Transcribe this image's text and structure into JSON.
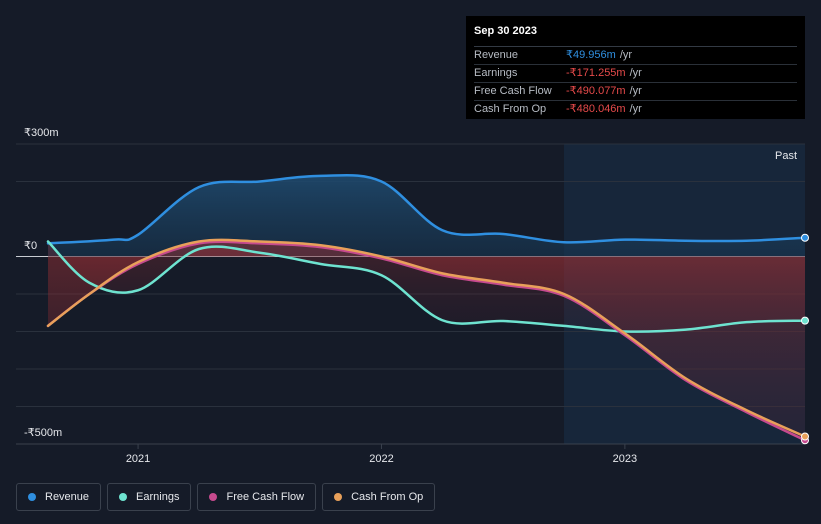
{
  "tooltip": {
    "date": "Sep 30 2023",
    "rows": [
      {
        "label": "Revenue",
        "value": "₹49.956m",
        "unit": "/yr",
        "color": "#2f8fe0"
      },
      {
        "label": "Earnings",
        "value": "-₹171.255m",
        "unit": "/yr",
        "color": "#e64a4a"
      },
      {
        "label": "Free Cash Flow",
        "value": "-₹490.077m",
        "unit": "/yr",
        "color": "#e64a4a"
      },
      {
        "label": "Cash From Op",
        "value": "-₹480.046m",
        "unit": "/yr",
        "color": "#e64a4a"
      }
    ]
  },
  "past_label": "Past",
  "colors": {
    "revenue": "#2f8fe0",
    "earnings": "#6ee3d0",
    "fcf": "#c64a8e",
    "cfo": "#e8a05a",
    "background": "#151b28"
  },
  "chart_data": {
    "type": "line",
    "x_unit": "year",
    "xlim": [
      2020.63,
      2023.74
    ],
    "ylim": [
      -500,
      300
    ],
    "y_tick_labels": [
      "₹300m",
      "₹0",
      "-₹500m"
    ],
    "y_ticks": [
      300,
      0,
      -500
    ],
    "x_tick_labels": [
      "2021",
      "2022",
      "2023"
    ],
    "x_ticks": [
      2021.0,
      2022.0,
      2023.0
    ],
    "past_region_start": 2022.75,
    "series": [
      {
        "name": "Revenue",
        "x": [
          2020.63,
          2020.9,
          2021.0,
          2021.25,
          2021.5,
          2021.75,
          2022.0,
          2022.25,
          2022.5,
          2022.75,
          2023.0,
          2023.25,
          2023.5,
          2023.74
        ],
        "y": [
          35,
          45,
          58,
          185,
          200,
          215,
          200,
          70,
          60,
          38,
          45,
          42,
          42,
          50
        ]
      },
      {
        "name": "Earnings",
        "x": [
          2020.63,
          2020.8,
          2021.0,
          2021.25,
          2021.5,
          2021.75,
          2022.0,
          2022.25,
          2022.5,
          2022.75,
          2023.0,
          2023.25,
          2023.5,
          2023.74
        ],
        "y": [
          40,
          -70,
          -90,
          20,
          10,
          -20,
          -50,
          -170,
          -172,
          -185,
          -200,
          -195,
          -175,
          -171
        ]
      },
      {
        "name": "Free Cash Flow",
        "x": [
          2020.63,
          2020.8,
          2021.0,
          2021.25,
          2021.5,
          2021.75,
          2022.0,
          2022.25,
          2022.5,
          2022.75,
          2023.0,
          2023.25,
          2023.5,
          2023.74
        ],
        "y": [
          -185,
          -100,
          -20,
          35,
          35,
          25,
          -5,
          -50,
          -75,
          -105,
          -210,
          -330,
          -415,
          -490
        ]
      },
      {
        "name": "Cash From Op",
        "x": [
          2020.63,
          2020.8,
          2021.0,
          2021.25,
          2021.5,
          2021.75,
          2022.0,
          2022.25,
          2022.5,
          2022.75,
          2023.0,
          2023.25,
          2023.5,
          2023.74
        ],
        "y": [
          -185,
          -100,
          -15,
          40,
          40,
          30,
          0,
          -45,
          -70,
          -100,
          -205,
          -325,
          -410,
          -480
        ]
      }
    ]
  },
  "legend": [
    {
      "label": "Revenue",
      "color": "#2f8fe0"
    },
    {
      "label": "Earnings",
      "color": "#6ee3d0"
    },
    {
      "label": "Free Cash Flow",
      "color": "#c64a8e"
    },
    {
      "label": "Cash From Op",
      "color": "#e8a05a"
    }
  ]
}
